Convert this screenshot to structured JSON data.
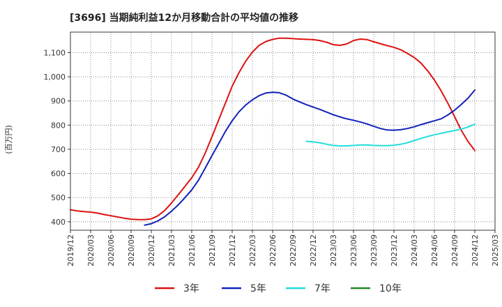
{
  "chart_data": {
    "type": "line",
    "title": "[3696]  当期純利益12か月移動合計の平均値の推移",
    "ylabel": "(百万円)",
    "xlabel": "",
    "ylim": [
      365,
      1185
    ],
    "yticks": [
      400,
      500,
      600,
      700,
      800,
      900,
      1000,
      1100
    ],
    "ytick_labels": [
      "400",
      "500",
      "600",
      "700",
      "800",
      "900",
      "1,000",
      "1,100"
    ],
    "xlim": [
      "2019-12",
      "2025-03"
    ],
    "xtick_labels": [
      "2019/12",
      "2020/03",
      "2020/06",
      "2020/09",
      "2020/12",
      "2021/03",
      "2021/06",
      "2021/09",
      "2021/12",
      "2022/03",
      "2022/06",
      "2022/09",
      "2022/12",
      "2023/03",
      "2023/06",
      "2023/09",
      "2023/12",
      "2024/03",
      "2024/06",
      "2024/09",
      "2024/12",
      "2025/03"
    ],
    "grid": true,
    "legend_position": "bottom",
    "series": [
      {
        "name": "3年",
        "color": "#dd1111",
        "points": [
          [
            "2019-12",
            450
          ],
          [
            "2020-01",
            445
          ],
          [
            "2020-02",
            442
          ],
          [
            "2020-03",
            440
          ],
          [
            "2020-04",
            436
          ],
          [
            "2020-05",
            430
          ],
          [
            "2020-06",
            425
          ],
          [
            "2020-07",
            420
          ],
          [
            "2020-08",
            415
          ],
          [
            "2020-09",
            411
          ],
          [
            "2020-10",
            409
          ],
          [
            "2020-11",
            409
          ],
          [
            "2020-12",
            412
          ],
          [
            "2021-01",
            425
          ],
          [
            "2021-02",
            447
          ],
          [
            "2021-03",
            478
          ],
          [
            "2021-04",
            512
          ],
          [
            "2021-05",
            547
          ],
          [
            "2021-06",
            582
          ],
          [
            "2021-07",
            626
          ],
          [
            "2021-08",
            684
          ],
          [
            "2021-09",
            752
          ],
          [
            "2021-10",
            822
          ],
          [
            "2021-11",
            891
          ],
          [
            "2021-12",
            961
          ],
          [
            "2022-01",
            1017
          ],
          [
            "2022-02",
            1064
          ],
          [
            "2022-03",
            1102
          ],
          [
            "2022-04",
            1130
          ],
          [
            "2022-05",
            1146
          ],
          [
            "2022-06",
            1155
          ],
          [
            "2022-07",
            1160
          ],
          [
            "2022-08",
            1160
          ],
          [
            "2022-09",
            1158
          ],
          [
            "2022-10",
            1156
          ],
          [
            "2022-11",
            1155
          ],
          [
            "2022-12",
            1154
          ],
          [
            "2023-01",
            1150
          ],
          [
            "2023-02",
            1143
          ],
          [
            "2023-03",
            1133
          ],
          [
            "2023-04",
            1130
          ],
          [
            "2023-05",
            1136
          ],
          [
            "2023-06",
            1150
          ],
          [
            "2023-07",
            1156
          ],
          [
            "2023-08",
            1154
          ],
          [
            "2023-09",
            1145
          ],
          [
            "2023-10",
            1137
          ],
          [
            "2023-11",
            1129
          ],
          [
            "2023-12",
            1122
          ],
          [
            "2024-01",
            1112
          ],
          [
            "2024-02",
            1097
          ],
          [
            "2024-03",
            1080
          ],
          [
            "2024-04",
            1057
          ],
          [
            "2024-05",
            1025
          ],
          [
            "2024-06",
            987
          ],
          [
            "2024-07",
            942
          ],
          [
            "2024-08",
            891
          ],
          [
            "2024-09",
            835
          ],
          [
            "2024-10",
            778
          ],
          [
            "2024-11",
            732
          ],
          [
            "2024-12",
            695
          ]
        ]
      },
      {
        "name": "5年",
        "color": "#1122bb",
        "points": [
          [
            "2020-11",
            386
          ],
          [
            "2020-12",
            392
          ],
          [
            "2021-01",
            404
          ],
          [
            "2021-02",
            421
          ],
          [
            "2021-03",
            444
          ],
          [
            "2021-04",
            470
          ],
          [
            "2021-05",
            500
          ],
          [
            "2021-06",
            532
          ],
          [
            "2021-07",
            572
          ],
          [
            "2021-08",
            622
          ],
          [
            "2021-09",
            674
          ],
          [
            "2021-10",
            724
          ],
          [
            "2021-11",
            774
          ],
          [
            "2021-12",
            818
          ],
          [
            "2022-01",
            855
          ],
          [
            "2022-02",
            883
          ],
          [
            "2022-03",
            905
          ],
          [
            "2022-04",
            922
          ],
          [
            "2022-05",
            933
          ],
          [
            "2022-06",
            936
          ],
          [
            "2022-07",
            934
          ],
          [
            "2022-08",
            924
          ],
          [
            "2022-09",
            908
          ],
          [
            "2022-10",
            896
          ],
          [
            "2022-11",
            885
          ],
          [
            "2022-12",
            875
          ],
          [
            "2023-01",
            865
          ],
          [
            "2023-02",
            854
          ],
          [
            "2023-03",
            843
          ],
          [
            "2023-04",
            834
          ],
          [
            "2023-05",
            826
          ],
          [
            "2023-06",
            820
          ],
          [
            "2023-07",
            813
          ],
          [
            "2023-08",
            805
          ],
          [
            "2023-09",
            795
          ],
          [
            "2023-10",
            786
          ],
          [
            "2023-11",
            780
          ],
          [
            "2023-12",
            779
          ],
          [
            "2024-01",
            781
          ],
          [
            "2024-02",
            786
          ],
          [
            "2024-03",
            793
          ],
          [
            "2024-04",
            802
          ],
          [
            "2024-05",
            810
          ],
          [
            "2024-06",
            818
          ],
          [
            "2024-07",
            826
          ],
          [
            "2024-08",
            842
          ],
          [
            "2024-09",
            862
          ],
          [
            "2024-10",
            886
          ],
          [
            "2024-11",
            912
          ],
          [
            "2024-12",
            945
          ]
        ]
      },
      {
        "name": "7年",
        "color": "#22dddd",
        "points": [
          [
            "2022-11",
            733
          ],
          [
            "2022-12",
            731
          ],
          [
            "2023-01",
            727
          ],
          [
            "2023-02",
            721
          ],
          [
            "2023-03",
            716
          ],
          [
            "2023-04",
            714
          ],
          [
            "2023-05",
            714
          ],
          [
            "2023-06",
            716
          ],
          [
            "2023-07",
            718
          ],
          [
            "2023-08",
            718
          ],
          [
            "2023-09",
            716
          ],
          [
            "2023-10",
            715
          ],
          [
            "2023-11",
            715
          ],
          [
            "2023-12",
            717
          ],
          [
            "2024-01",
            721
          ],
          [
            "2024-02",
            727
          ],
          [
            "2024-03",
            736
          ],
          [
            "2024-04",
            745
          ],
          [
            "2024-05",
            753
          ],
          [
            "2024-06",
            760
          ],
          [
            "2024-07",
            766
          ],
          [
            "2024-08",
            772
          ],
          [
            "2024-09",
            778
          ],
          [
            "2024-10",
            784
          ],
          [
            "2024-11",
            792
          ],
          [
            "2024-12",
            804
          ]
        ]
      },
      {
        "name": "10年",
        "color": "#228822",
        "points": []
      }
    ]
  }
}
